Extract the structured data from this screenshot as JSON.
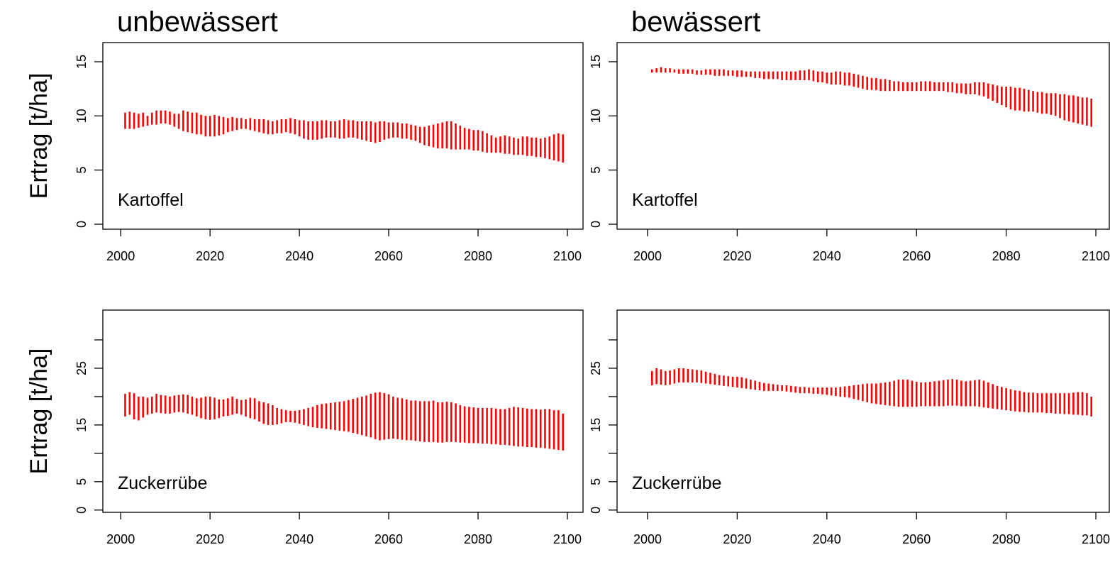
{
  "chart_data": [
    {
      "type": "range",
      "title": "unbewässert",
      "ylabel": "Ertrag [t/ha]",
      "annotation": "Kartoffel",
      "color": "#ff0000",
      "xlim": [
        1996,
        2103.5
      ],
      "ylim": [
        -0.46,
        16.77
      ],
      "xticks": [
        2000,
        2020,
        2040,
        2060,
        2080,
        2100
      ],
      "yticks": [
        0,
        5,
        10,
        15
      ],
      "x": [
        2001,
        2002,
        2003,
        2004,
        2005,
        2006,
        2007,
        2008,
        2009,
        2010,
        2011,
        2012,
        2013,
        2014,
        2015,
        2016,
        2017,
        2018,
        2019,
        2020,
        2021,
        2022,
        2023,
        2024,
        2025,
        2026,
        2027,
        2028,
        2029,
        2030,
        2031,
        2032,
        2033,
        2034,
        2035,
        2036,
        2037,
        2038,
        2039,
        2040,
        2041,
        2042,
        2043,
        2044,
        2045,
        2046,
        2047,
        2048,
        2049,
        2050,
        2051,
        2052,
        2053,
        2054,
        2055,
        2056,
        2057,
        2058,
        2059,
        2060,
        2061,
        2062,
        2063,
        2064,
        2065,
        2066,
        2067,
        2068,
        2069,
        2070,
        2071,
        2072,
        2073,
        2074,
        2075,
        2076,
        2077,
        2078,
        2079,
        2080,
        2081,
        2082,
        2083,
        2084,
        2085,
        2086,
        2087,
        2088,
        2089,
        2090,
        2091,
        2092,
        2093,
        2094,
        2095,
        2096,
        2097,
        2098,
        2099
      ],
      "high": [
        10.3,
        10.4,
        10.3,
        10.2,
        10.3,
        10.0,
        10.3,
        10.5,
        10.5,
        10.5,
        10.4,
        10.2,
        10.2,
        10.5,
        10.4,
        10.3,
        10.3,
        10.1,
        10.0,
        10.0,
        10.1,
        10.0,
        9.9,
        9.8,
        9.9,
        9.8,
        9.8,
        9.7,
        9.8,
        9.7,
        9.7,
        9.7,
        9.6,
        9.5,
        9.6,
        9.7,
        9.7,
        9.8,
        9.7,
        9.6,
        9.6,
        9.5,
        9.5,
        9.5,
        9.6,
        9.6,
        9.5,
        9.5,
        9.6,
        9.7,
        9.6,
        9.6,
        9.5,
        9.5,
        9.5,
        9.5,
        9.4,
        9.5,
        9.5,
        9.4,
        9.4,
        9.4,
        9.3,
        9.3,
        9.2,
        9.1,
        9.0,
        9.0,
        9.1,
        9.2,
        9.3,
        9.4,
        9.5,
        9.5,
        9.3,
        9.1,
        8.9,
        8.8,
        8.7,
        8.7,
        8.6,
        8.4,
        8.2,
        8.0,
        8.1,
        8.2,
        8.1,
        8.0,
        7.9,
        8.1,
        8.1,
        8.0,
        8.0,
        7.9,
        8.0,
        8.1,
        8.3,
        8.4,
        8.3
      ],
      "low": [
        8.8,
        8.8,
        8.8,
        8.9,
        9.0,
        9.1,
        9.2,
        9.2,
        9.3,
        9.3,
        9.2,
        9.0,
        8.8,
        8.6,
        8.5,
        8.4,
        8.3,
        8.3,
        8.1,
        8.1,
        8.1,
        8.2,
        8.3,
        8.5,
        8.6,
        8.7,
        8.8,
        8.8,
        8.7,
        8.6,
        8.5,
        8.4,
        8.3,
        8.3,
        8.4,
        8.4,
        8.5,
        8.4,
        8.3,
        8.1,
        7.9,
        7.8,
        7.8,
        7.8,
        7.9,
        8.0,
        8.0,
        8.0,
        7.9,
        7.9,
        8.0,
        8.0,
        7.9,
        7.8,
        7.7,
        7.6,
        7.5,
        7.6,
        7.8,
        7.9,
        8.0,
        8.0,
        7.9,
        7.9,
        7.8,
        7.7,
        7.5,
        7.3,
        7.2,
        7.1,
        7.0,
        7.0,
        7.0,
        6.9,
        6.9,
        6.9,
        6.9,
        6.9,
        6.8,
        6.8,
        6.7,
        6.6,
        6.6,
        6.6,
        6.6,
        6.5,
        6.5,
        6.4,
        6.4,
        6.4,
        6.3,
        6.3,
        6.2,
        6.2,
        6.1,
        6.0,
        5.9,
        5.8,
        5.7
      ]
    },
    {
      "type": "range",
      "title": "bewässert",
      "annotation": "Kartoffel",
      "color": "#ff0000",
      "xlim": [
        1993.2,
        2103
      ],
      "ylim": [
        -0.46,
        16.77
      ],
      "xticks": [
        2000,
        2020,
        2040,
        2060,
        2080,
        2100
      ],
      "yticks": [
        0,
        5,
        10,
        15
      ],
      "x": [
        2001,
        2002,
        2003,
        2004,
        2005,
        2006,
        2007,
        2008,
        2009,
        2010,
        2011,
        2012,
        2013,
        2014,
        2015,
        2016,
        2017,
        2018,
        2019,
        2020,
        2021,
        2022,
        2023,
        2024,
        2025,
        2026,
        2027,
        2028,
        2029,
        2030,
        2031,
        2032,
        2033,
        2034,
        2035,
        2036,
        2037,
        2038,
        2039,
        2040,
        2041,
        2042,
        2043,
        2044,
        2045,
        2046,
        2047,
        2048,
        2049,
        2050,
        2051,
        2052,
        2053,
        2054,
        2055,
        2056,
        2057,
        2058,
        2059,
        2060,
        2061,
        2062,
        2063,
        2064,
        2065,
        2066,
        2067,
        2068,
        2069,
        2070,
        2071,
        2072,
        2073,
        2074,
        2075,
        2076,
        2077,
        2078,
        2079,
        2080,
        2081,
        2082,
        2083,
        2084,
        2085,
        2086,
        2087,
        2088,
        2089,
        2090,
        2091,
        2092,
        2093,
        2094,
        2095,
        2096,
        2097,
        2098,
        2099
      ],
      "high": [
        14.3,
        14.4,
        14.5,
        14.4,
        14.4,
        14.3,
        14.3,
        14.3,
        14.3,
        14.3,
        14.2,
        14.2,
        14.3,
        14.3,
        14.3,
        14.3,
        14.3,
        14.2,
        14.2,
        14.2,
        14.2,
        14.1,
        14.1,
        14.1,
        14.1,
        14.1,
        14.1,
        14.1,
        14.1,
        14.1,
        14.1,
        14.1,
        14.1,
        14.2,
        14.2,
        14.3,
        14.2,
        14.1,
        14.1,
        14.0,
        14.0,
        14.1,
        14.1,
        14.0,
        14.0,
        13.9,
        13.8,
        13.7,
        13.6,
        13.5,
        13.5,
        13.4,
        13.4,
        13.3,
        13.2,
        13.2,
        13.1,
        13.1,
        13.1,
        13.1,
        13.2,
        13.2,
        13.2,
        13.1,
        13.1,
        13.1,
        13.1,
        13.1,
        13.0,
        13.0,
        13.0,
        13.0,
        13.1,
        13.1,
        13.1,
        13.0,
        12.9,
        12.8,
        12.7,
        12.7,
        12.7,
        12.6,
        12.6,
        12.5,
        12.4,
        12.3,
        12.2,
        12.2,
        12.1,
        12.1,
        12.1,
        12.0,
        12.0,
        11.9,
        11.9,
        11.8,
        11.7,
        11.7,
        11.6
      ],
      "low": [
        14.0,
        14.0,
        14.0,
        14.0,
        14.0,
        14.0,
        13.9,
        13.9,
        13.9,
        13.9,
        13.8,
        13.8,
        13.8,
        13.8,
        13.7,
        13.7,
        13.7,
        13.7,
        13.7,
        13.6,
        13.6,
        13.6,
        13.6,
        13.5,
        13.5,
        13.4,
        13.4,
        13.4,
        13.4,
        13.3,
        13.3,
        13.3,
        13.3,
        13.3,
        13.3,
        13.3,
        13.2,
        13.1,
        13.1,
        13.0,
        12.9,
        12.9,
        12.9,
        12.8,
        12.8,
        12.7,
        12.6,
        12.5,
        12.4,
        12.4,
        12.4,
        12.3,
        12.3,
        12.3,
        12.3,
        12.3,
        12.3,
        12.3,
        12.3,
        12.3,
        12.3,
        12.3,
        12.3,
        12.3,
        12.3,
        12.3,
        12.2,
        12.2,
        12.1,
        12.1,
        12.0,
        12.0,
        12.0,
        11.9,
        11.8,
        11.6,
        11.4,
        11.2,
        11.0,
        10.8,
        10.6,
        10.5,
        10.5,
        10.4,
        10.4,
        10.4,
        10.3,
        10.2,
        10.2,
        10.1,
        10.0,
        9.8,
        9.6,
        9.5,
        9.4,
        9.3,
        9.2,
        9.1,
        9.0
      ]
    },
    {
      "type": "range",
      "ylabel": "Ertrag [t/ha]",
      "annotation": "Zuckerrübe",
      "color": "#ff0000",
      "xlim": [
        1996,
        2103.5
      ],
      "ylim": [
        -0.4,
        35.25
      ],
      "xticks": [
        2000,
        2020,
        2040,
        2060,
        2080,
        2100
      ],
      "yticks": [
        0,
        5,
        15,
        25
      ],
      "yminorticks": [
        10,
        20,
        30
      ],
      "x": [
        2001,
        2002,
        2003,
        2004,
        2005,
        2006,
        2007,
        2008,
        2009,
        2010,
        2011,
        2012,
        2013,
        2014,
        2015,
        2016,
        2017,
        2018,
        2019,
        2020,
        2021,
        2022,
        2023,
        2024,
        2025,
        2026,
        2027,
        2028,
        2029,
        2030,
        2031,
        2032,
        2033,
        2034,
        2035,
        2036,
        2037,
        2038,
        2039,
        2040,
        2041,
        2042,
        2043,
        2044,
        2045,
        2046,
        2047,
        2048,
        2049,
        2050,
        2051,
        2052,
        2053,
        2054,
        2055,
        2056,
        2057,
        2058,
        2059,
        2060,
        2061,
        2062,
        2063,
        2064,
        2065,
        2066,
        2067,
        2068,
        2069,
        2070,
        2071,
        2072,
        2073,
        2074,
        2075,
        2076,
        2077,
        2078,
        2079,
        2080,
        2081,
        2082,
        2083,
        2084,
        2085,
        2086,
        2087,
        2088,
        2089,
        2090,
        2091,
        2092,
        2093,
        2094,
        2095,
        2096,
        2097,
        2098,
        2099
      ],
      "high": [
        20.5,
        20.8,
        20.6,
        20.0,
        20.0,
        19.8,
        20.0,
        20.5,
        20.3,
        20.2,
        20.0,
        20.2,
        20.3,
        20.4,
        20.3,
        20.0,
        19.7,
        19.8,
        20.0,
        20.0,
        19.8,
        19.5,
        19.5,
        19.7,
        20.0,
        19.6,
        19.4,
        19.5,
        19.8,
        19.7,
        19.2,
        19.0,
        18.8,
        18.5,
        18.0,
        17.8,
        17.6,
        17.5,
        17.5,
        17.6,
        17.8,
        18.0,
        18.2,
        18.5,
        18.7,
        18.8,
        18.9,
        19.0,
        19.1,
        19.2,
        19.4,
        19.6,
        19.8,
        20.0,
        20.2,
        20.5,
        20.7,
        20.8,
        20.6,
        20.4,
        20.0,
        19.8,
        19.7,
        19.5,
        19.3,
        19.3,
        19.2,
        19.2,
        19.2,
        19.3,
        19.0,
        19.0,
        19.1,
        19.0,
        18.8,
        18.5,
        18.3,
        18.2,
        18.1,
        18.0,
        18.0,
        18.0,
        18.0,
        17.9,
        17.8,
        17.8,
        18.0,
        18.2,
        18.1,
        18.0,
        17.9,
        17.8,
        17.8,
        17.7,
        17.8,
        17.8,
        17.6,
        17.6,
        17.0
      ],
      "low": [
        16.5,
        16.8,
        16.0,
        15.8,
        16.3,
        16.8,
        17.0,
        17.2,
        17.1,
        17.0,
        17.0,
        17.2,
        17.3,
        17.2,
        17.0,
        16.8,
        16.5,
        16.2,
        16.0,
        15.9,
        16.0,
        16.2,
        16.5,
        16.6,
        16.8,
        17.0,
        16.8,
        16.5,
        16.2,
        16.0,
        15.6,
        15.2,
        15.0,
        15.0,
        15.1,
        15.3,
        15.5,
        15.5,
        15.4,
        15.2,
        15.0,
        14.8,
        14.6,
        14.5,
        14.4,
        14.3,
        14.2,
        14.1,
        14.0,
        13.9,
        13.8,
        13.6,
        13.4,
        13.2,
        13.0,
        12.8,
        12.5,
        12.3,
        12.4,
        12.5,
        12.6,
        12.5,
        12.4,
        12.3,
        12.3,
        12.2,
        12.1,
        12.0,
        12.0,
        12.0,
        11.9,
        11.9,
        12.0,
        12.0,
        12.0,
        11.9,
        11.9,
        11.8,
        11.8,
        11.8,
        11.7,
        11.7,
        11.6,
        11.6,
        11.5,
        11.5,
        11.4,
        11.3,
        11.2,
        11.2,
        11.1,
        11.1,
        11.0,
        11.0,
        10.9,
        10.8,
        10.7,
        10.6,
        10.5
      ]
    },
    {
      "type": "range",
      "annotation": "Zuckerrübe",
      "color": "#ff0000",
      "xlim": [
        1993.2,
        2103
      ],
      "ylim": [
        -0.4,
        35.25
      ],
      "xticks": [
        2000,
        2020,
        2040,
        2060,
        2080,
        2100
      ],
      "yticks": [
        0,
        5,
        15,
        25
      ],
      "yminorticks": [
        10,
        20,
        30
      ],
      "x": [
        2001,
        2002,
        2003,
        2004,
        2005,
        2006,
        2007,
        2008,
        2009,
        2010,
        2011,
        2012,
        2013,
        2014,
        2015,
        2016,
        2017,
        2018,
        2019,
        2020,
        2021,
        2022,
        2023,
        2024,
        2025,
        2026,
        2027,
        2028,
        2029,
        2030,
        2031,
        2032,
        2033,
        2034,
        2035,
        2036,
        2037,
        2038,
        2039,
        2040,
        2041,
        2042,
        2043,
        2044,
        2045,
        2046,
        2047,
        2048,
        2049,
        2050,
        2051,
        2052,
        2053,
        2054,
        2055,
        2056,
        2057,
        2058,
        2059,
        2060,
        2061,
        2062,
        2063,
        2064,
        2065,
        2066,
        2067,
        2068,
        2069,
        2070,
        2071,
        2072,
        2073,
        2074,
        2075,
        2076,
        2077,
        2078,
        2079,
        2080,
        2081,
        2082,
        2083,
        2084,
        2085,
        2086,
        2087,
        2088,
        2089,
        2090,
        2091,
        2092,
        2093,
        2094,
        2095,
        2096,
        2097,
        2098,
        2099
      ],
      "high": [
        24.5,
        25.0,
        24.8,
        24.5,
        24.6,
        24.8,
        25.0,
        25.0,
        24.9,
        24.8,
        24.7,
        24.6,
        24.4,
        24.2,
        24.0,
        23.8,
        23.7,
        23.6,
        23.5,
        23.5,
        23.4,
        23.2,
        23.0,
        22.8,
        22.6,
        22.4,
        22.3,
        22.2,
        22.1,
        22.0,
        22.0,
        21.9,
        21.8,
        21.7,
        21.7,
        21.6,
        21.6,
        21.6,
        21.6,
        21.6,
        21.6,
        21.6,
        21.7,
        21.8,
        21.9,
        22.0,
        22.1,
        22.2,
        22.3,
        22.3,
        22.3,
        22.4,
        22.5,
        22.6,
        22.8,
        23.0,
        23.0,
        23.0,
        22.8,
        22.6,
        22.5,
        22.5,
        22.6,
        22.7,
        22.8,
        22.9,
        23.0,
        23.1,
        23.0,
        22.8,
        22.7,
        22.8,
        22.9,
        23.0,
        22.8,
        22.5,
        22.2,
        21.9,
        21.7,
        21.5,
        21.3,
        21.1,
        21.0,
        20.8,
        20.7,
        20.7,
        20.6,
        20.6,
        20.6,
        20.6,
        20.6,
        20.6,
        20.6,
        20.6,
        20.7,
        20.8,
        20.8,
        20.6,
        20.0
      ],
      "low": [
        22.0,
        22.2,
        22.1,
        22.0,
        22.1,
        22.3,
        22.5,
        22.5,
        22.5,
        22.5,
        22.5,
        22.4,
        22.3,
        22.2,
        22.1,
        22.0,
        21.9,
        21.8,
        21.7,
        21.6,
        21.5,
        21.4,
        21.3,
        21.2,
        21.1,
        21.0,
        21.0,
        21.0,
        21.0,
        21.0,
        20.9,
        20.8,
        20.7,
        20.6,
        20.6,
        20.6,
        20.5,
        20.5,
        20.4,
        20.3,
        20.2,
        20.1,
        20.0,
        19.9,
        19.8,
        19.6,
        19.4,
        19.2,
        19.0,
        18.8,
        18.7,
        18.6,
        18.5,
        18.4,
        18.3,
        18.2,
        18.2,
        18.2,
        18.2,
        18.2,
        18.3,
        18.3,
        18.3,
        18.3,
        18.3,
        18.3,
        18.4,
        18.4,
        18.4,
        18.3,
        18.3,
        18.3,
        18.3,
        18.2,
        18.1,
        18.0,
        17.9,
        17.8,
        17.7,
        17.6,
        17.5,
        17.4,
        17.3,
        17.3,
        17.2,
        17.2,
        17.2,
        17.2,
        17.1,
        17.1,
        17.0,
        17.0,
        16.9,
        16.9,
        16.8,
        16.8,
        16.7,
        16.7,
        16.5
      ]
    }
  ]
}
